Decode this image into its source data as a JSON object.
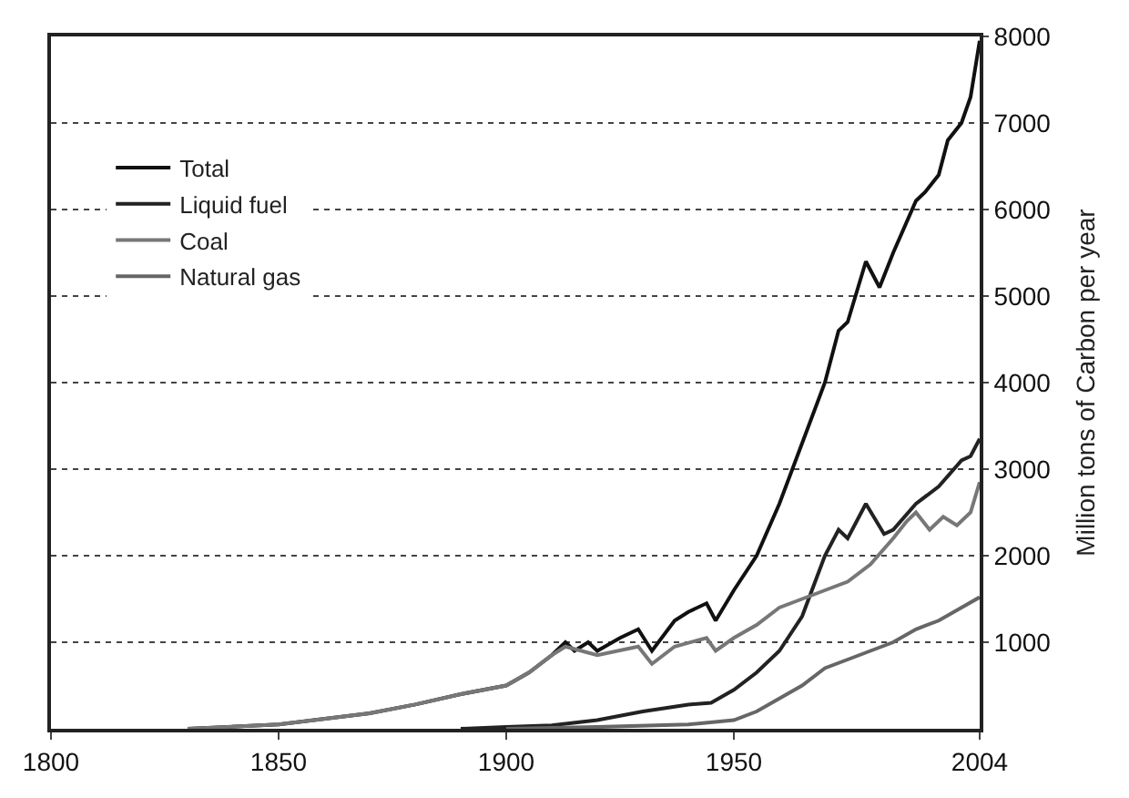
{
  "chart_data": {
    "type": "line",
    "ylabel": "Million tons of Carbon per year",
    "xlim": [
      1800,
      2004
    ],
    "xticks": [
      1800,
      1850,
      1900,
      1950,
      2004
    ],
    "ylim": [
      0,
      8000
    ],
    "yticks": [
      1000,
      2000,
      3000,
      4000,
      5000,
      6000,
      7000,
      8000
    ],
    "grid": "y",
    "legend": "top left",
    "marker": "none",
    "line_style": "solid",
    "series": [
      {
        "name": "Total",
        "color": "#111111",
        "x": [
          1830,
          1850,
          1870,
          1880,
          1890,
          1900,
          1905,
          1910,
          1913,
          1915,
          1918,
          1920,
          1925,
          1929,
          1932,
          1937,
          1940,
          1944,
          1946,
          1950,
          1955,
          1960,
          1965,
          1970,
          1973,
          1975,
          1979,
          1982,
          1985,
          1990,
          1992,
          1995,
          1997,
          2000,
          2002,
          2004
        ],
        "values": [
          0,
          50,
          180,
          280,
          400,
          500,
          650,
          850,
          1000,
          900,
          1000,
          900,
          1050,
          1150,
          900,
          1250,
          1350,
          1450,
          1250,
          1600,
          2000,
          2600,
          3300,
          4000,
          4600,
          4700,
          5400,
          5100,
          5500,
          6100,
          6200,
          6400,
          6800,
          7000,
          7300,
          7950
        ]
      },
      {
        "name": "Liquid fuel",
        "color": "#222222",
        "x": [
          1890,
          1900,
          1910,
          1920,
          1930,
          1940,
          1945,
          1950,
          1955,
          1960,
          1965,
          1970,
          1973,
          1975,
          1979,
          1983,
          1985,
          1990,
          1995,
          2000,
          2002,
          2004
        ],
        "values": [
          0,
          20,
          40,
          100,
          200,
          280,
          300,
          450,
          650,
          900,
          1300,
          2000,
          2300,
          2200,
          2600,
          2250,
          2300,
          2600,
          2800,
          3100,
          3150,
          3350
        ]
      },
      {
        "name": "Coal",
        "color": "#777777",
        "x": [
          1830,
          1850,
          1870,
          1880,
          1890,
          1900,
          1905,
          1910,
          1913,
          1920,
          1929,
          1932,
          1937,
          1944,
          1946,
          1950,
          1955,
          1960,
          1965,
          1970,
          1975,
          1980,
          1985,
          1988,
          1990,
          1993,
          1996,
          1999,
          2002,
          2004
        ],
        "values": [
          0,
          50,
          180,
          280,
          400,
          500,
          650,
          850,
          950,
          850,
          950,
          750,
          950,
          1050,
          900,
          1050,
          1200,
          1400,
          1500,
          1600,
          1700,
          1900,
          2200,
          2400,
          2500,
          2300,
          2450,
          2350,
          2500,
          2850
        ]
      },
      {
        "name": "Natural gas",
        "color": "#666666",
        "x": [
          1900,
          1920,
          1940,
          1950,
          1955,
          1960,
          1965,
          1970,
          1975,
          1980,
          1985,
          1990,
          1995,
          2000,
          2004
        ],
        "values": [
          0,
          20,
          50,
          100,
          200,
          350,
          500,
          700,
          800,
          900,
          1000,
          1150,
          1250,
          1400,
          1520
        ]
      }
    ]
  }
}
